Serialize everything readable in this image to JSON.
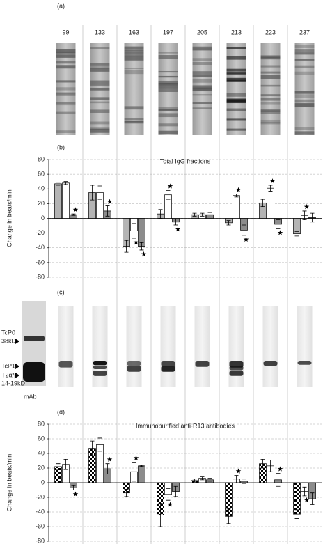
{
  "panels": {
    "a": "(a)",
    "b": "(b)",
    "c": "(c)",
    "d": "(d)"
  },
  "blot_labels": [
    "TcP0",
    "38kD",
    "TcP1/",
    "T2α/β",
    "14-19kD",
    "mAb"
  ],
  "chart_data": [
    {
      "type": "bar",
      "title": "Total IgG fractions",
      "y_label": "Change in beats/min",
      "categories": [
        "99",
        "133",
        "163",
        "197",
        "205",
        "213",
        "223",
        "237"
      ],
      "ylim": [
        -80,
        80
      ],
      "yticks": [
        -80,
        -60,
        -40,
        -20,
        0,
        20,
        40,
        60,
        80
      ],
      "grid": true,
      "series": [
        {
          "color": "#b4b4b4",
          "values": [
            47,
            35,
            -38,
            6,
            5,
            -6,
            21,
            -21
          ],
          "errors": [
            2,
            10,
            8,
            6,
            2,
            3,
            5,
            3
          ],
          "significant": [
            false,
            false,
            false,
            false,
            false,
            false,
            false,
            false
          ]
        },
        {
          "color": "#ffffff",
          "values": [
            48,
            35,
            -17,
            32,
            5,
            31,
            41,
            4
          ],
          "errors": [
            2,
            9,
            10,
            6,
            2,
            2,
            4,
            6
          ],
          "significant": [
            false,
            false,
            true,
            true,
            false,
            true,
            true,
            true
          ]
        },
        {
          "color": "#8c8c8c",
          "values": [
            5,
            10,
            -38,
            -5,
            5,
            -16,
            -8,
            1
          ],
          "errors": [
            1,
            7,
            5,
            4,
            3,
            7,
            6,
            6
          ],
          "significant": [
            true,
            true,
            true,
            true,
            false,
            true,
            true,
            false
          ]
        }
      ]
    },
    {
      "type": "bar",
      "title": "Immunopurified anti-R13 antibodies",
      "y_label": "Change in beats/min",
      "ylim": [
        -80,
        80
      ],
      "yticks": [
        -80,
        -60,
        -40,
        -20,
        0,
        20,
        40,
        60,
        80
      ],
      "grid": true,
      "series": [
        {
          "color": "#000000",
          "pattern": "checker",
          "values": [
            22,
            47,
            -14,
            -44,
            3,
            -46,
            26,
            -43
          ],
          "errors": [
            4,
            10,
            5,
            16,
            2,
            10,
            6,
            6
          ],
          "significant": [
            false,
            false,
            false,
            false,
            false,
            false,
            false,
            false
          ]
        },
        {
          "color": "#ffffff",
          "values": [
            25,
            52,
            15,
            -16,
            6,
            5,
            23,
            -12
          ],
          "errors": [
            7,
            9,
            13,
            8,
            2,
            5,
            8,
            6
          ],
          "significant": [
            false,
            false,
            true,
            true,
            false,
            true,
            false,
            true
          ]
        },
        {
          "color": "#8c8c8c",
          "values": [
            -7,
            19,
            23,
            -12,
            4,
            2,
            4,
            -22
          ],
          "errors": [
            3,
            7,
            1,
            7,
            2,
            3,
            9,
            8
          ],
          "significant": [
            true,
            true,
            false,
            false,
            false,
            false,
            true,
            false
          ]
        }
      ]
    }
  ]
}
